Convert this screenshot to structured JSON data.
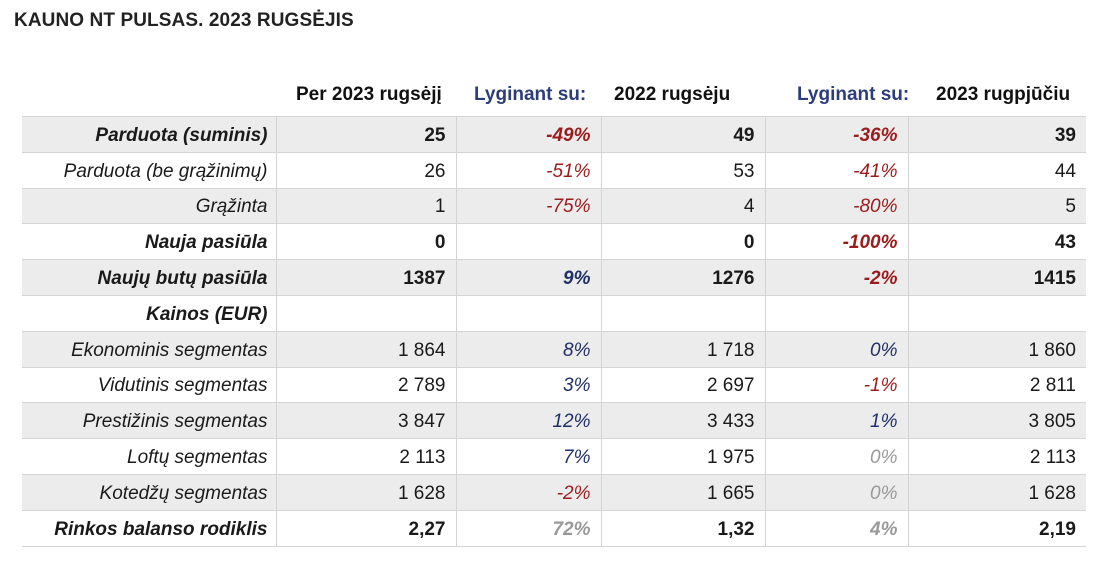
{
  "title": "KAUNO NT PULSAS. 2023 RUGSĖJIS",
  "headers": {
    "col1": "Per 2023 rugsėjį",
    "col2": "Lyginant su:",
    "col3": "2022 rugsėju",
    "col4": "Lyginant su:",
    "col5": "2023 rugpjūčiu"
  },
  "rows": [
    {
      "label": "Parduota (suminis)",
      "v1": "25",
      "p1": "-49%",
      "v2": "49",
      "p2": "-36%",
      "v3": "39"
    },
    {
      "label": "Parduota (be grąžinimų)",
      "v1": "26",
      "p1": "-51%",
      "v2": "53",
      "p2": "-41%",
      "v3": "44"
    },
    {
      "label": "Grąžinta",
      "v1": "1",
      "p1": "-75%",
      "v2": "4",
      "p2": "-80%",
      "v3": "5"
    },
    {
      "label": "Nauja pasiūla",
      "v1": "0",
      "p1": "",
      "v2": "0",
      "p2": "-100%",
      "v3": "43"
    },
    {
      "label": "Naujų butų pasiūla",
      "v1": "1387",
      "p1": "9%",
      "v2": "1276",
      "p2": "-2%",
      "v3": "1415"
    },
    {
      "label": "Kainos (EUR)",
      "v1": "",
      "p1": "",
      "v2": "",
      "p2": "",
      "v3": ""
    },
    {
      "label": "Ekonominis segmentas",
      "v1": "1 864",
      "p1": "8%",
      "v2": "1 718",
      "p2": "0%",
      "v3": "1 860"
    },
    {
      "label": "Vidutinis segmentas",
      "v1": "2 789",
      "p1": "3%",
      "v2": "2 697",
      "p2": "-1%",
      "v3": "2 811"
    },
    {
      "label": "Prestižinis segmentas",
      "v1": "3 847",
      "p1": "12%",
      "v2": "3 433",
      "p2": "1%",
      "v3": "3 805"
    },
    {
      "label": "Loftų segmentas",
      "v1": "2 113",
      "p1": "7%",
      "v2": "1 975",
      "p2": "0%",
      "v3": "2 113"
    },
    {
      "label": "Kotedžų segmentas",
      "v1": "1 628",
      "p1": "-2%",
      "v2": "1 665",
      "p2": "0%",
      "v3": "1 628"
    },
    {
      "label": "Rinkos balanso rodiklis",
      "v1": "2,27",
      "p1": "72%",
      "v2": "1,32",
      "p2": "4%",
      "v3": "2,19"
    }
  ],
  "colors": {
    "negative": "#9b1c1c",
    "positive": "#203068",
    "neutral": "#999999",
    "row_shade": "#ececec"
  }
}
